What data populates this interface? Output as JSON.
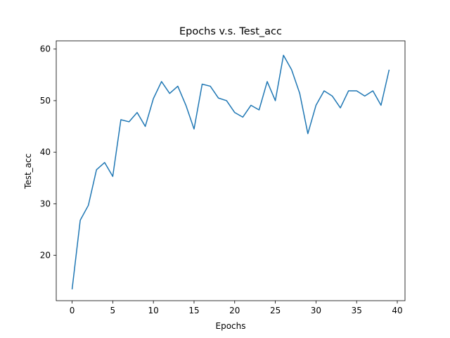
{
  "chart_data": {
    "type": "line",
    "title": "Epochs v.s. Test_acc",
    "xlabel": "Epochs",
    "ylabel": "Test_acc",
    "xlim": [
      -1.95,
      40.95
    ],
    "ylim": [
      11.2,
      61.6
    ],
    "xticks": [
      0,
      5,
      10,
      15,
      20,
      25,
      30,
      35,
      40
    ],
    "yticks": [
      20,
      30,
      40,
      50,
      60
    ],
    "grid": false,
    "line_color": "#1f77b4",
    "series": [
      {
        "x": [
          0,
          1,
          2,
          3,
          4,
          5,
          6,
          7,
          8,
          9,
          10,
          11,
          12,
          13,
          14,
          15,
          16,
          17,
          18,
          19,
          20,
          21,
          22,
          23,
          24,
          25,
          26,
          27,
          28,
          29,
          30,
          31,
          32,
          33,
          34,
          35,
          36,
          37,
          38,
          39
        ],
        "values": [
          13.4,
          26.8,
          29.7,
          36.6,
          38.0,
          35.3,
          46.3,
          45.9,
          47.7,
          45.0,
          50.4,
          53.7,
          51.4,
          52.8,
          49.1,
          44.5,
          53.2,
          52.8,
          50.5,
          50.0,
          47.7,
          46.8,
          49.1,
          48.2,
          53.7,
          50.0,
          58.8,
          56.0,
          51.4,
          43.6,
          49.1,
          51.9,
          50.9,
          48.6,
          51.9,
          51.9,
          50.9,
          51.9,
          49.1,
          56.0
        ]
      }
    ]
  }
}
